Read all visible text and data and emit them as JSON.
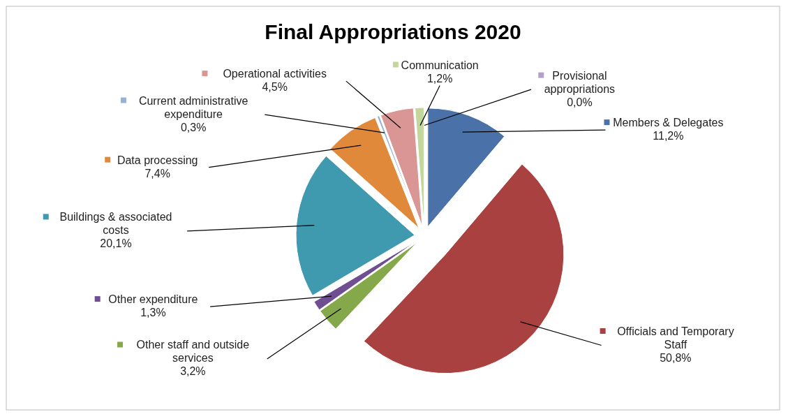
{
  "chart_data": {
    "type": "pie",
    "legend": "left",
    "title": "Final Appropriations 2020",
    "categories": [
      "Members & Delegates",
      "Officials and Temporary Staff",
      "Other staff and outside services",
      "Other expenditure",
      "Buildings & associated costs",
      "Data processing",
      "Current administrative expenditure",
      "Operational activities",
      "Communication",
      "Provisional appropriations"
    ],
    "values": [
      11.2,
      50.8,
      3.2,
      1.3,
      20.1,
      7.4,
      0.3,
      4.5,
      1.2,
      0.0
    ],
    "colors": [
      "#4a72a8",
      "#a8413f",
      "#84a84a",
      "#6f4f92",
      "#3f9ab0",
      "#e0893a",
      "#95b3d7",
      "#d99694",
      "#c3d69b",
      "#b3a2c7"
    ],
    "value_labels": [
      "11,2%",
      "50,8%",
      "3,2%",
      "1,3%",
      "20,1%",
      "7,4%",
      "0,3%",
      "4,5%",
      "1,2%",
      "0,0%"
    ]
  }
}
